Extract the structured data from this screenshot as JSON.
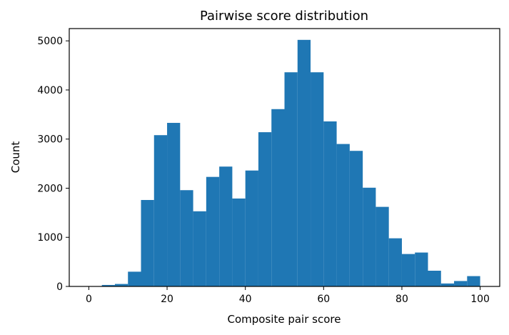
{
  "chart_data": {
    "type": "bar",
    "title": "Pairwise score distribution",
    "xlabel": "Composite pair score",
    "ylabel": "Count",
    "xlim": [
      -5,
      105
    ],
    "ylim": [
      0,
      5250
    ],
    "xticks": [
      0,
      20,
      40,
      60,
      80,
      100
    ],
    "yticks": [
      0,
      1000,
      2000,
      3000,
      4000,
      5000
    ],
    "bin_width": 3.333,
    "bins": [
      {
        "x0": 0.0,
        "x1": 3.333,
        "value": 0
      },
      {
        "x0": 3.333,
        "x1": 6.667,
        "value": 30
      },
      {
        "x0": 6.667,
        "x1": 10.0,
        "value": 50
      },
      {
        "x0": 10.0,
        "x1": 13.333,
        "value": 300
      },
      {
        "x0": 13.333,
        "x1": 16.667,
        "value": 1760
      },
      {
        "x0": 16.667,
        "x1": 20.0,
        "value": 3080
      },
      {
        "x0": 20.0,
        "x1": 23.333,
        "value": 3330
      },
      {
        "x0": 23.333,
        "x1": 26.667,
        "value": 1960
      },
      {
        "x0": 26.667,
        "x1": 30.0,
        "value": 1530
      },
      {
        "x0": 30.0,
        "x1": 33.333,
        "value": 2230
      },
      {
        "x0": 33.333,
        "x1": 36.667,
        "value": 2440
      },
      {
        "x0": 36.667,
        "x1": 40.0,
        "value": 1790
      },
      {
        "x0": 40.0,
        "x1": 43.333,
        "value": 2360
      },
      {
        "x0": 43.333,
        "x1": 46.667,
        "value": 3140
      },
      {
        "x0": 46.667,
        "x1": 50.0,
        "value": 3610
      },
      {
        "x0": 50.0,
        "x1": 53.333,
        "value": 4360
      },
      {
        "x0": 53.333,
        "x1": 56.667,
        "value": 5020
      },
      {
        "x0": 56.667,
        "x1": 60.0,
        "value": 4360
      },
      {
        "x0": 60.0,
        "x1": 63.333,
        "value": 3360
      },
      {
        "x0": 63.333,
        "x1": 66.667,
        "value": 2900
      },
      {
        "x0": 66.667,
        "x1": 70.0,
        "value": 2760
      },
      {
        "x0": 70.0,
        "x1": 73.333,
        "value": 2010
      },
      {
        "x0": 73.333,
        "x1": 76.667,
        "value": 1620
      },
      {
        "x0": 76.667,
        "x1": 80.0,
        "value": 980
      },
      {
        "x0": 80.0,
        "x1": 83.333,
        "value": 660
      },
      {
        "x0": 83.333,
        "x1": 86.667,
        "value": 690
      },
      {
        "x0": 86.667,
        "x1": 90.0,
        "value": 320
      },
      {
        "x0": 90.0,
        "x1": 93.333,
        "value": 60
      },
      {
        "x0": 93.333,
        "x1": 96.667,
        "value": 110
      },
      {
        "x0": 96.667,
        "x1": 100.0,
        "value": 210
      }
    ],
    "bar_color": "#1f77b4",
    "grid": false,
    "legend": "none"
  }
}
